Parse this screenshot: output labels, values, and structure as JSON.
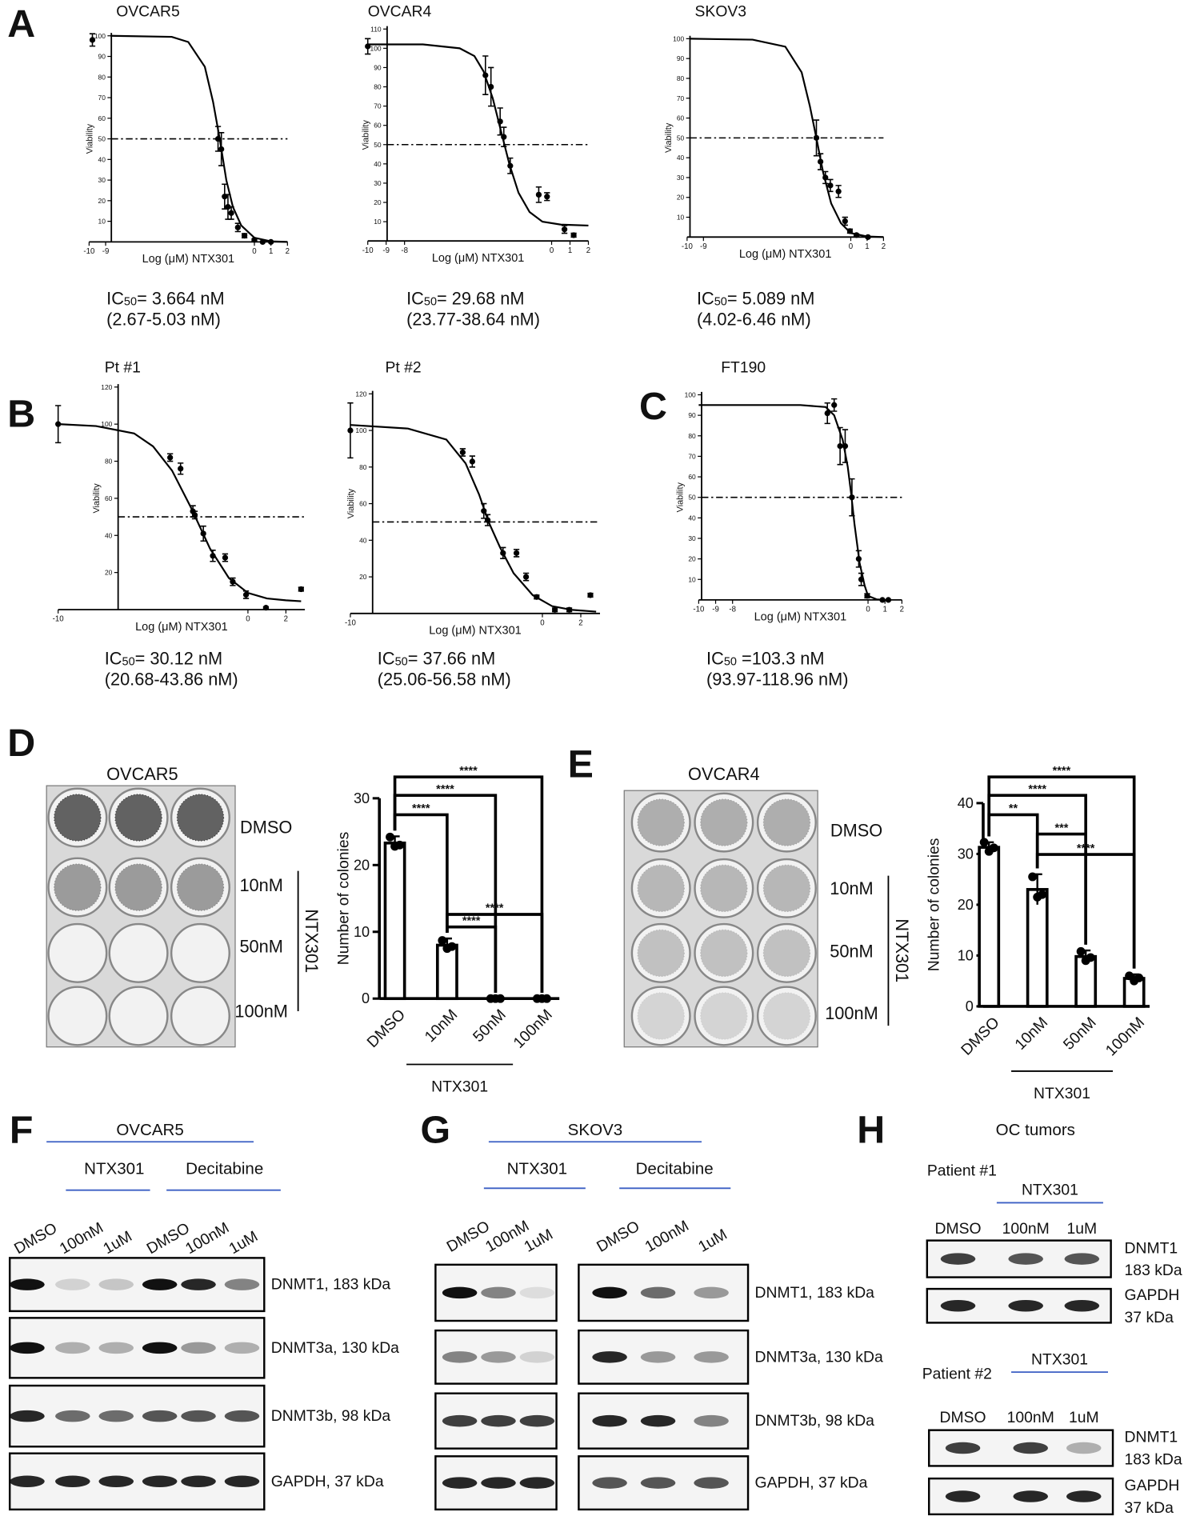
{
  "panel_letters": [
    "A",
    "B",
    "C",
    "D",
    "E",
    "F",
    "G",
    "H"
  ],
  "chart_data": [
    {
      "type": "dose-response",
      "title": "OVCAR5",
      "xlabel": "Log (μM) NTX301",
      "ylabel": "Viability",
      "xlim": [
        -10,
        2
      ],
      "ylim": [
        0,
        100
      ],
      "xticks": [
        -10,
        -9,
        0,
        1,
        2
      ],
      "yticks": [
        10,
        20,
        30,
        40,
        50,
        60,
        70,
        80,
        90,
        100
      ],
      "reference_line": 50,
      "x": [
        -9.8,
        -2.2,
        -2.0,
        -1.8,
        -1.6,
        -1.4,
        -1.0,
        -0.6,
        0,
        0.5,
        1.0
      ],
      "values": [
        98,
        50,
        45,
        22,
        17,
        14,
        7,
        3,
        1,
        0,
        0
      ],
      "errors": [
        3,
        6,
        8,
        6,
        6,
        3,
        2,
        1,
        0.5,
        0,
        0
      ],
      "fit_x": [
        -8.7,
        -5,
        -4,
        -3,
        -2.5,
        -2.1,
        -1.7,
        -1.3,
        -0.8,
        0,
        1,
        2
      ],
      "fit_values": [
        100,
        99.5,
        97,
        85,
        68,
        50,
        30,
        17,
        8,
        2,
        0.3,
        0
      ],
      "ic_label": "IC",
      "ic_sub": "50",
      "ic_value": "= 3.664 nM",
      "ic_range": "(2.67-5.03 nM)"
    },
    {
      "type": "dose-response",
      "title": "OVCAR4",
      "xlabel": "Log (μM) NTX301",
      "ylabel": "Viability",
      "xlim": [
        -10,
        2
      ],
      "ylim": [
        0,
        110
      ],
      "xticks": [
        -10,
        -9,
        -8,
        0,
        1,
        2
      ],
      "yticks": [
        10,
        20,
        30,
        40,
        50,
        60,
        70,
        80,
        90,
        100,
        110
      ],
      "reference_line": 50,
      "x": [
        -10,
        -3.6,
        -3.3,
        -2.8,
        -2.6,
        -2.25,
        -0.7,
        -0.25,
        0.7,
        1.2
      ],
      "values": [
        101,
        86,
        80,
        62,
        54,
        39,
        24,
        23,
        6,
        3
      ],
      "errors": [
        4,
        10,
        10,
        7,
        5,
        4,
        4,
        2,
        2,
        1
      ],
      "fit_x": [
        -10,
        -7,
        -5,
        -4.2,
        -3.7,
        -3.2,
        -2.7,
        -2.3,
        -1.8,
        -1.2,
        -0.5,
        0.5,
        2
      ],
      "fit_values": [
        102,
        102,
        100,
        96,
        88,
        74,
        55,
        40,
        25,
        15,
        10,
        8.5,
        8
      ],
      "ic_label": "IC",
      "ic_sub": "50",
      "ic_value": "= 29.68 nM",
      "ic_range": "(23.77-38.64 nM)"
    },
    {
      "type": "dose-response",
      "title": "SKOV3",
      "xlabel": "Log (μM) NTX301",
      "ylabel": "Viability",
      "xlim": [
        -10,
        2
      ],
      "ylim": [
        0,
        100
      ],
      "xticks": [
        -10,
        -9,
        0,
        1,
        2
      ],
      "yticks": [
        10,
        20,
        30,
        40,
        50,
        60,
        70,
        80,
        90,
        100
      ],
      "reference_line": 50,
      "x": [
        -2.1,
        -1.85,
        -1.55,
        -1.25,
        -0.75,
        -0.35,
        -0.05,
        0.35,
        1.05
      ],
      "values": [
        50,
        38,
        30,
        26,
        23,
        8,
        3,
        1,
        0
      ],
      "errors": [
        9,
        4,
        3,
        3,
        3,
        2,
        1,
        0.5,
        0
      ],
      "fit_x": [
        -9.8,
        -6,
        -4,
        -3,
        -2.5,
        -2.1,
        -1.7,
        -1.2,
        -0.6,
        0,
        1,
        2
      ],
      "fit_values": [
        100,
        99.5,
        96,
        83,
        66,
        50,
        33,
        17,
        7,
        2,
        0.3,
        0
      ],
      "ic_label": "IC",
      "ic_sub": "50",
      "ic_value": "= 5.089 nM",
      "ic_range": "(4.02-6.46 nM)"
    },
    {
      "type": "dose-response",
      "title": "Pt #1",
      "xlabel": "Log (μM) NTX301",
      "ylabel": "Viability",
      "xlim": [
        -10,
        3
      ],
      "ylim": [
        0,
        120
      ],
      "xticks": [
        -10,
        0,
        2
      ],
      "yticks": [
        20,
        40,
        60,
        80,
        100,
        120
      ],
      "reference_line": 50,
      "x": [
        -10,
        -4.1,
        -3.55,
        -2.9,
        -2.8,
        -2.35,
        -1.85,
        -1.2,
        -0.8,
        -0.1,
        0.95,
        2.8
      ],
      "values": [
        100,
        82,
        76,
        53,
        51,
        41,
        29,
        28,
        15,
        8,
        1,
        11
      ],
      "errors": [
        10,
        2,
        3,
        3,
        2,
        4,
        3,
        2,
        2,
        2,
        0.5,
        1
      ],
      "fit_x": [
        -10,
        -8,
        -6,
        -5,
        -4,
        -3,
        -2.5,
        -2,
        -1,
        0,
        1,
        2,
        2.8
      ],
      "fit_values": [
        100,
        99,
        95,
        88,
        75,
        55,
        44,
        33,
        17,
        9,
        6,
        5,
        4.5
      ],
      "ic_label": "IC",
      "ic_sub": "50",
      "ic_value": "= 30.12 nM",
      "ic_range": "(20.68-43.86 nM)"
    },
    {
      "type": "dose-response",
      "title": "Pt #2",
      "xlabel": "Log (μM) NTX301",
      "ylabel": "Viability",
      "xlim": [
        -10,
        3
      ],
      "ylim": [
        0,
        120
      ],
      "xticks": [
        -10,
        0,
        2
      ],
      "yticks": [
        20,
        40,
        60,
        80,
        100,
        120
      ],
      "reference_line": 50,
      "x": [
        -10,
        -4.15,
        -3.65,
        -3.05,
        -2.85,
        -2.05,
        -1.35,
        -0.85,
        -0.3,
        0.65,
        1.4,
        2.5
      ],
      "values": [
        100,
        88,
        83,
        56,
        51,
        33,
        33,
        20,
        9,
        2,
        2,
        10
      ],
      "errors": [
        15,
        2,
        3,
        4,
        3,
        3,
        2,
        2,
        1,
        1,
        1,
        1
      ],
      "fit_x": [
        -10,
        -7,
        -5,
        -4,
        -3.3,
        -2.8,
        -2.2,
        -1.5,
        -0.5,
        0.5,
        1.5,
        2.8
      ],
      "fit_values": [
        103,
        101,
        95,
        82,
        65,
        50,
        36,
        22,
        10,
        4,
        2,
        1
      ],
      "ic_label": "IC",
      "ic_sub": "50",
      "ic_value": "= 37.66 nM",
      "ic_range": "(25.06-56.58 nM)"
    },
    {
      "type": "dose-response",
      "title": "FT190",
      "xlabel": "Log (μM) NTX301",
      "ylabel": "Viability",
      "xlim": [
        -10,
        2
      ],
      "ylim": [
        0,
        100
      ],
      "xticks": [
        -10,
        -9,
        -8,
        0,
        1,
        2
      ],
      "yticks": [
        10,
        20,
        30,
        40,
        50,
        60,
        70,
        80,
        90,
        100
      ],
      "reference_line": 50,
      "x": [
        -2.4,
        -2,
        -1.65,
        -1.35,
        -0.95,
        -0.55,
        -0.4,
        -0.05,
        0.85,
        1.2
      ],
      "values": [
        91,
        95,
        75,
        75,
        50,
        20,
        10,
        2,
        0,
        0
      ],
      "errors": [
        5,
        3,
        9,
        8,
        9,
        4,
        3,
        1,
        0,
        0
      ],
      "fit_x": [
        -10,
        -4,
        -2.5,
        -2,
        -1.5,
        -1.2,
        -1,
        -0.8,
        -0.5,
        -0.2,
        0,
        0.5,
        1
      ],
      "fit_values": [
        95,
        95,
        94,
        90,
        78,
        65,
        52,
        37,
        18,
        7,
        2,
        0.3,
        0
      ],
      "ic_label": "IC",
      "ic_sub": "50",
      "ic_value": " =103.3 nM",
      "ic_range": "(93.97-118.96 nM)"
    },
    {
      "type": "bar",
      "ylabel": "Number of colonies",
      "categories": [
        "DMSO",
        "10nM",
        "50nM",
        "100nM"
      ],
      "group_label": "NTX301",
      "values": [
        23.3,
        8,
        0,
        0
      ],
      "errors": [
        1,
        1,
        0,
        0
      ],
      "points": [
        [
          24.2,
          23,
          22.8
        ],
        [
          8.7,
          7.8,
          7.5
        ],
        [
          0,
          0,
          0
        ],
        [
          0,
          0,
          0
        ]
      ],
      "ylim": [
        0,
        30
      ],
      "yticks": [
        0,
        10,
        20,
        30
      ],
      "brackets": [
        {
          "text": "****",
          "from": 0,
          "to": 3
        },
        {
          "text": "****",
          "from": 0,
          "to": 2
        },
        {
          "text": "****",
          "from": 0,
          "to": 1
        },
        {
          "text": "****",
          "from": 1,
          "to": 3
        },
        {
          "text": "****",
          "from": 1,
          "to": 2
        }
      ]
    },
    {
      "type": "bar",
      "ylabel": "Number of colonies",
      "categories": [
        "DMSO",
        "10nM",
        "50nM",
        "100nM"
      ],
      "group_label": "NTX301",
      "values": [
        31.3,
        23,
        9.8,
        5.5
      ],
      "errors": [
        1,
        3,
        1.2,
        0.8
      ],
      "points": [
        [
          32.3,
          31.2,
          30.5
        ],
        [
          25.5,
          22,
          21.5
        ],
        [
          10.8,
          9.6,
          9
        ],
        [
          6,
          5.6,
          5
        ]
      ],
      "ylim": [
        0,
        40
      ],
      "yticks": [
        0,
        10,
        20,
        30,
        40
      ],
      "brackets": [
        {
          "text": "****",
          "from": 0,
          "to": 3
        },
        {
          "text": "****",
          "from": 0,
          "to": 2
        },
        {
          "text": "**",
          "from": 0,
          "to": 1
        },
        {
          "text": "***",
          "from": 1,
          "to": 2
        },
        {
          "text": "****",
          "from": 1,
          "to": 3
        }
      ]
    }
  ],
  "colony_assays": [
    {
      "title": "OVCAR5",
      "rows": [
        "DMSO",
        "10nM",
        "50nM",
        "100nM"
      ],
      "treatment": "NTX301"
    },
    {
      "title": "OVCAR4",
      "rows": [
        "DMSO",
        "10nM",
        "50nM",
        "100nM"
      ],
      "treatment": "NTX301"
    }
  ],
  "blots": [
    {
      "title": "OVCAR5",
      "groups": [
        "NTX301",
        "Decitabine"
      ],
      "lanes": [
        "DMSO",
        "100nM",
        "1uM",
        "DMSO",
        "100nM",
        "1uM"
      ],
      "bands": [
        "DNMT1, 183 kDa",
        "DNMT3a, 130 kDa",
        "DNMT3b, 98 kDa",
        "GAPDH, 37 kDa"
      ]
    },
    {
      "title": "SKOV3",
      "groups": [
        "NTX301",
        "Decitabine"
      ],
      "lanes": [
        "DMSO",
        "100nM",
        "1uM",
        "DMSO",
        "100nM",
        "1uM"
      ],
      "bands": [
        "DNMT1, 183 kDa",
        "DNMT3a, 130 kDa",
        "DNMT3b, 98 kDa",
        "GAPDH, 37 kDa"
      ]
    },
    {
      "title": "OC tumors",
      "patients": [
        {
          "name": "Patient #1",
          "group": "NTX301",
          "lanes": [
            "DMSO",
            "100nM",
            "1uM"
          ],
          "bands": [
            [
              "DNMT1",
              "183 kDa"
            ],
            [
              "GAPDH",
              "37 kDa"
            ]
          ]
        },
        {
          "name": "Patient #2",
          "group": "NTX301",
          "lanes": [
            "DMSO",
            "100nM",
            "1uM"
          ],
          "bands": [
            [
              "DNMT1",
              "183 kDa"
            ],
            [
              "GAPDH",
              "37 kDa"
            ]
          ]
        }
      ]
    }
  ]
}
